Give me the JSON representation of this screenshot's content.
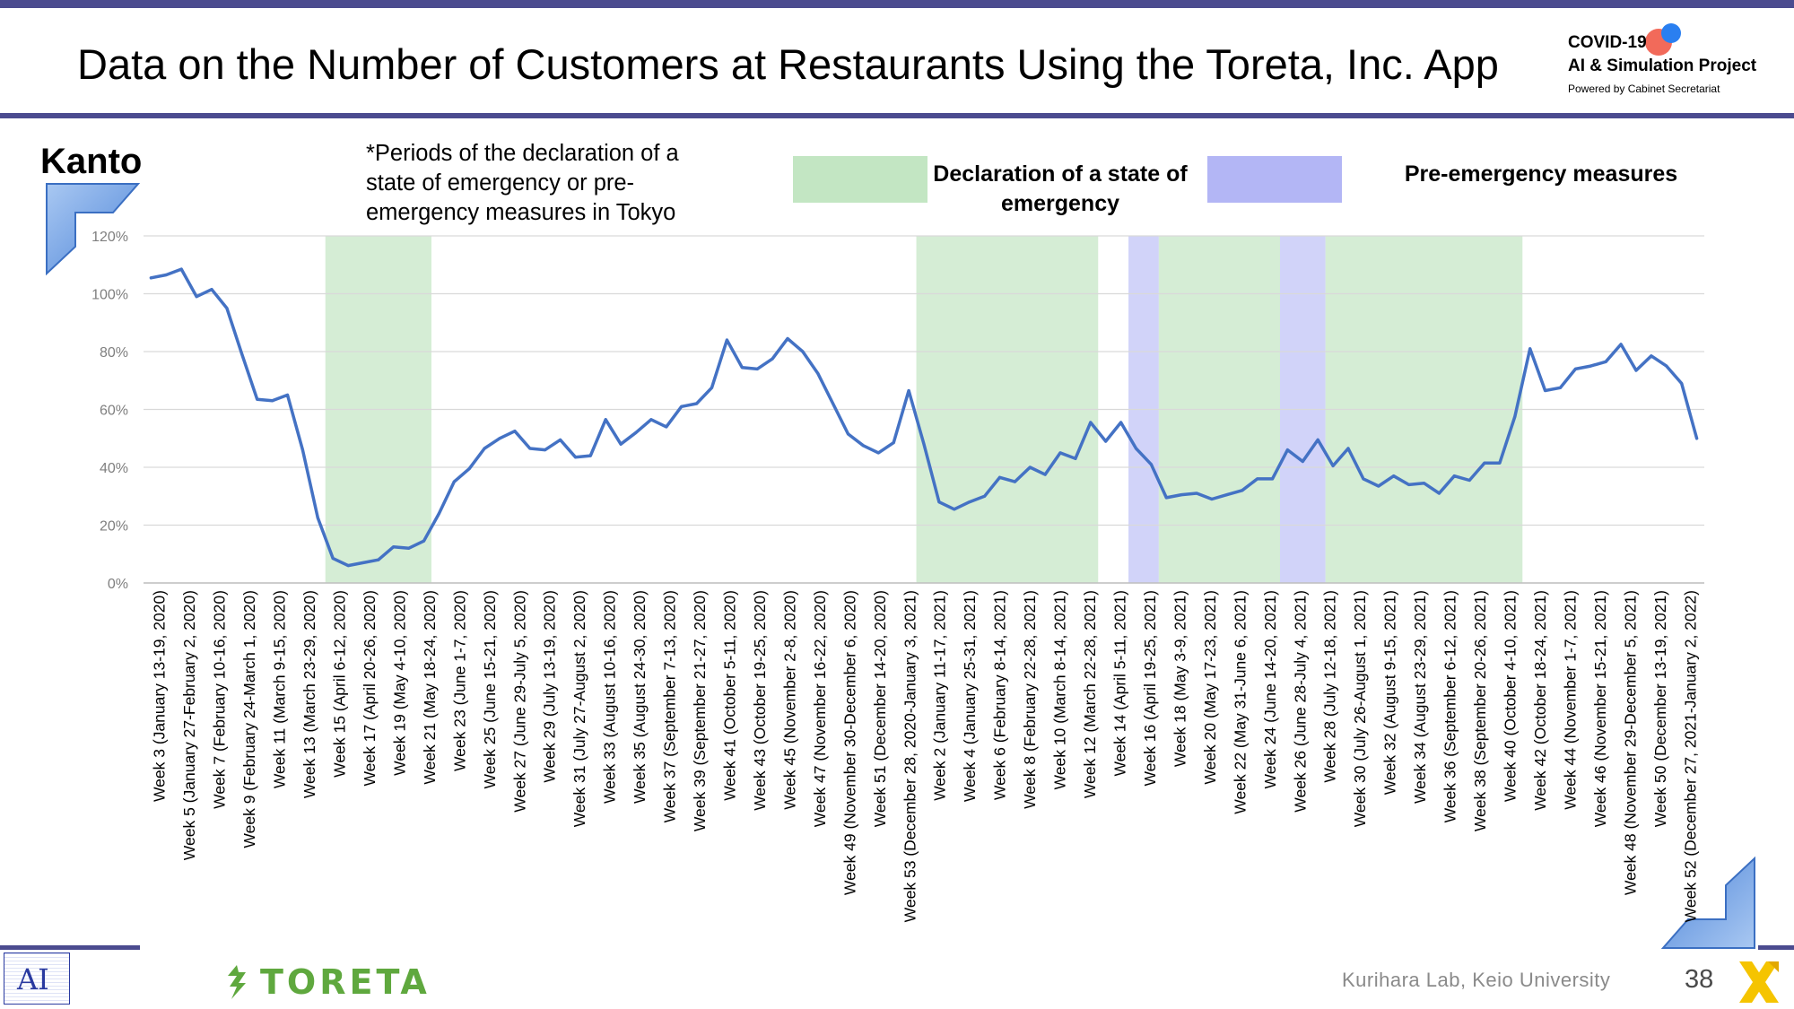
{
  "header": {
    "title": "Data on the Number of Customers at Restaurants Using the Toreta, Inc. App",
    "logo_line1": "COVID-19",
    "logo_line2": "AI & Simulation Project",
    "logo_line3": "Powered by Cabinet Secretariat"
  },
  "panel": {
    "region": "Kanto",
    "note": "*Periods of the declaration of a state of emergency or pre-emergency measures in Tokyo",
    "legend": [
      {
        "label": "Declaration of a state of emergency",
        "color": "#c3e6c3"
      },
      {
        "label": "Pre-emergency measures",
        "color": "#b3b6f5"
      }
    ]
  },
  "chart_data": {
    "type": "line",
    "ylim": [
      0,
      120
    ],
    "yticks": [
      0,
      20,
      40,
      60,
      80,
      100,
      120
    ],
    "ytick_labels": [
      "0%",
      "20%",
      "40%",
      "60%",
      "80%",
      "100%",
      "120%"
    ],
    "grid": true,
    "line_color": "#4472c4",
    "x_labels": [
      "Week 3 (January 13-19, 2020)",
      "Week 5 (January 27-February 2, 2020)",
      "Week 7 (February 10-16, 2020)",
      "Week 9 (February 24-March 1, 2020)",
      "Week 11 (March 9-15, 2020)",
      "Week 13 (March 23-29, 2020)",
      "Week 15 (April 6-12, 2020)",
      "Week 17 (April 20-26, 2020)",
      "Week 19 (May 4-10, 2020)",
      "Week 21 (May 18-24, 2020)",
      "Week 23 (June 1-7, 2020)",
      "Week 25 (June 15-21, 2020)",
      "Week 27 (June 29-July 5, 2020)",
      "Week 29 (July 13-19, 2020)",
      "Week 31 (July 27-August 2, 2020)",
      "Week 33 (August 10-16, 2020)",
      "Week 35 (August 24-30, 2020)",
      "Week 37 (September 7-13, 2020)",
      "Week 39 (September 21-27, 2020)",
      "Week 41 (October 5-11, 2020)",
      "Week 43 (October 19-25, 2020)",
      "Week 45 (November 2-8, 2020)",
      "Week 47 (November 16-22, 2020)",
      "Week 49 (November 30-December 6, 2020)",
      "Week 51 (December 14-20, 2020)",
      "Week 53 (December 28, 2020-January 3, 2021)",
      "Week 2 (January 11-17, 2021)",
      "Week 4 (January 25-31, 2021)",
      "Week 6 (February 8-14, 2021)",
      "Week 8 (February 22-28, 2021)",
      "Week 10 (March 8-14, 2021)",
      "Week 12 (March 22-28, 2021)",
      "Week 14 (April 5-11, 2021)",
      "Week 16 (April 19-25, 2021)",
      "Week 18 (May 3-9, 2021)",
      "Week 20 (May 17-23, 2021)",
      "Week 22 (May 31-June 6, 2021)",
      "Week 24 (June 14-20, 2021)",
      "Week 26 (June 28-July 4, 2021)",
      "Week 28 (July 12-18, 2021)",
      "Week 30 (July 26-August 1, 2021)",
      "Week 32 (August 9-15, 2021)",
      "Week 34 (August 23-29, 2021)",
      "Week 36 (September 6-12, 2021)",
      "Week 38 (September 20-26, 2021)",
      "Week 40 (October 4-10, 2021)",
      "Week 42 (October 18-24, 2021)",
      "Week 44 (November 1-7, 2021)",
      "Week 46 (November 15-21, 2021)",
      "Week 48 (November 29-December 5, 2021)",
      "Week 50 (December 13-19, 2021)",
      "Week 52 (December 27, 2021-January 2, 2022)"
    ],
    "values": [
      105.5,
      106.5,
      108.5,
      99,
      101.5,
      95,
      79,
      63.5,
      63,
      65,
      46,
      22.5,
      8.5,
      6,
      7,
      8,
      12.5,
      12,
      14.5,
      24,
      35,
      39.5,
      46.5,
      50,
      52.5,
      46.5,
      46,
      49.5,
      43.5,
      44,
      56.5,
      48,
      52,
      56.5,
      54,
      61,
      62,
      67.5,
      84,
      74.5,
      74,
      77.5,
      84.5,
      80,
      72.5,
      62,
      51.5,
      47.5,
      45,
      48.5,
      66.5,
      48,
      28,
      25.5,
      28,
      30,
      36.5,
      35,
      40,
      37.5,
      45,
      43,
      55.5,
      49,
      55.5,
      46.5,
      41,
      29.5,
      30.5,
      31,
      29,
      30.5,
      32,
      36,
      36,
      46,
      42,
      49.5,
      40.5,
      46.5,
      36,
      33.5,
      37,
      34,
      34.5,
      31,
      37,
      35.5,
      41.5,
      41.5,
      57.5,
      81,
      66.5,
      67.5,
      74,
      75,
      76.5,
      82.5,
      73.5,
      78.5,
      75,
      69,
      50
    ],
    "shaded_periods": [
      {
        "type": "Declaration of a state of emergency",
        "start": "Week 15 (April 6-12, 2020)",
        "end": "Week 21 (May 18-24, 2020)"
      },
      {
        "type": "Declaration of a state of emergency",
        "start": "Week 2 (January 11-17, 2021)",
        "end": "Week 12 (March 22-28, 2021)"
      },
      {
        "type": "Pre-emergency measures",
        "start": "Week 16 (April 19-25, 2021)",
        "end": "Week 17"
      },
      {
        "type": "Declaration of a state of emergency",
        "start": "Week 18 (May 3-9, 2021)",
        "end": "Week 25"
      },
      {
        "type": "Pre-emergency measures",
        "start": "Week 26 (June 28-July 4, 2021)",
        "end": "Week 27"
      },
      {
        "type": "Declaration of a state of emergency",
        "start": "Week 28 (July 12-18, 2021)",
        "end": "Week 39"
      }
    ]
  },
  "footer": {
    "ai_logo_text": "AI",
    "brand": "TORETA",
    "credit": "Kurihara Lab, Keio University",
    "page_number": "38"
  }
}
